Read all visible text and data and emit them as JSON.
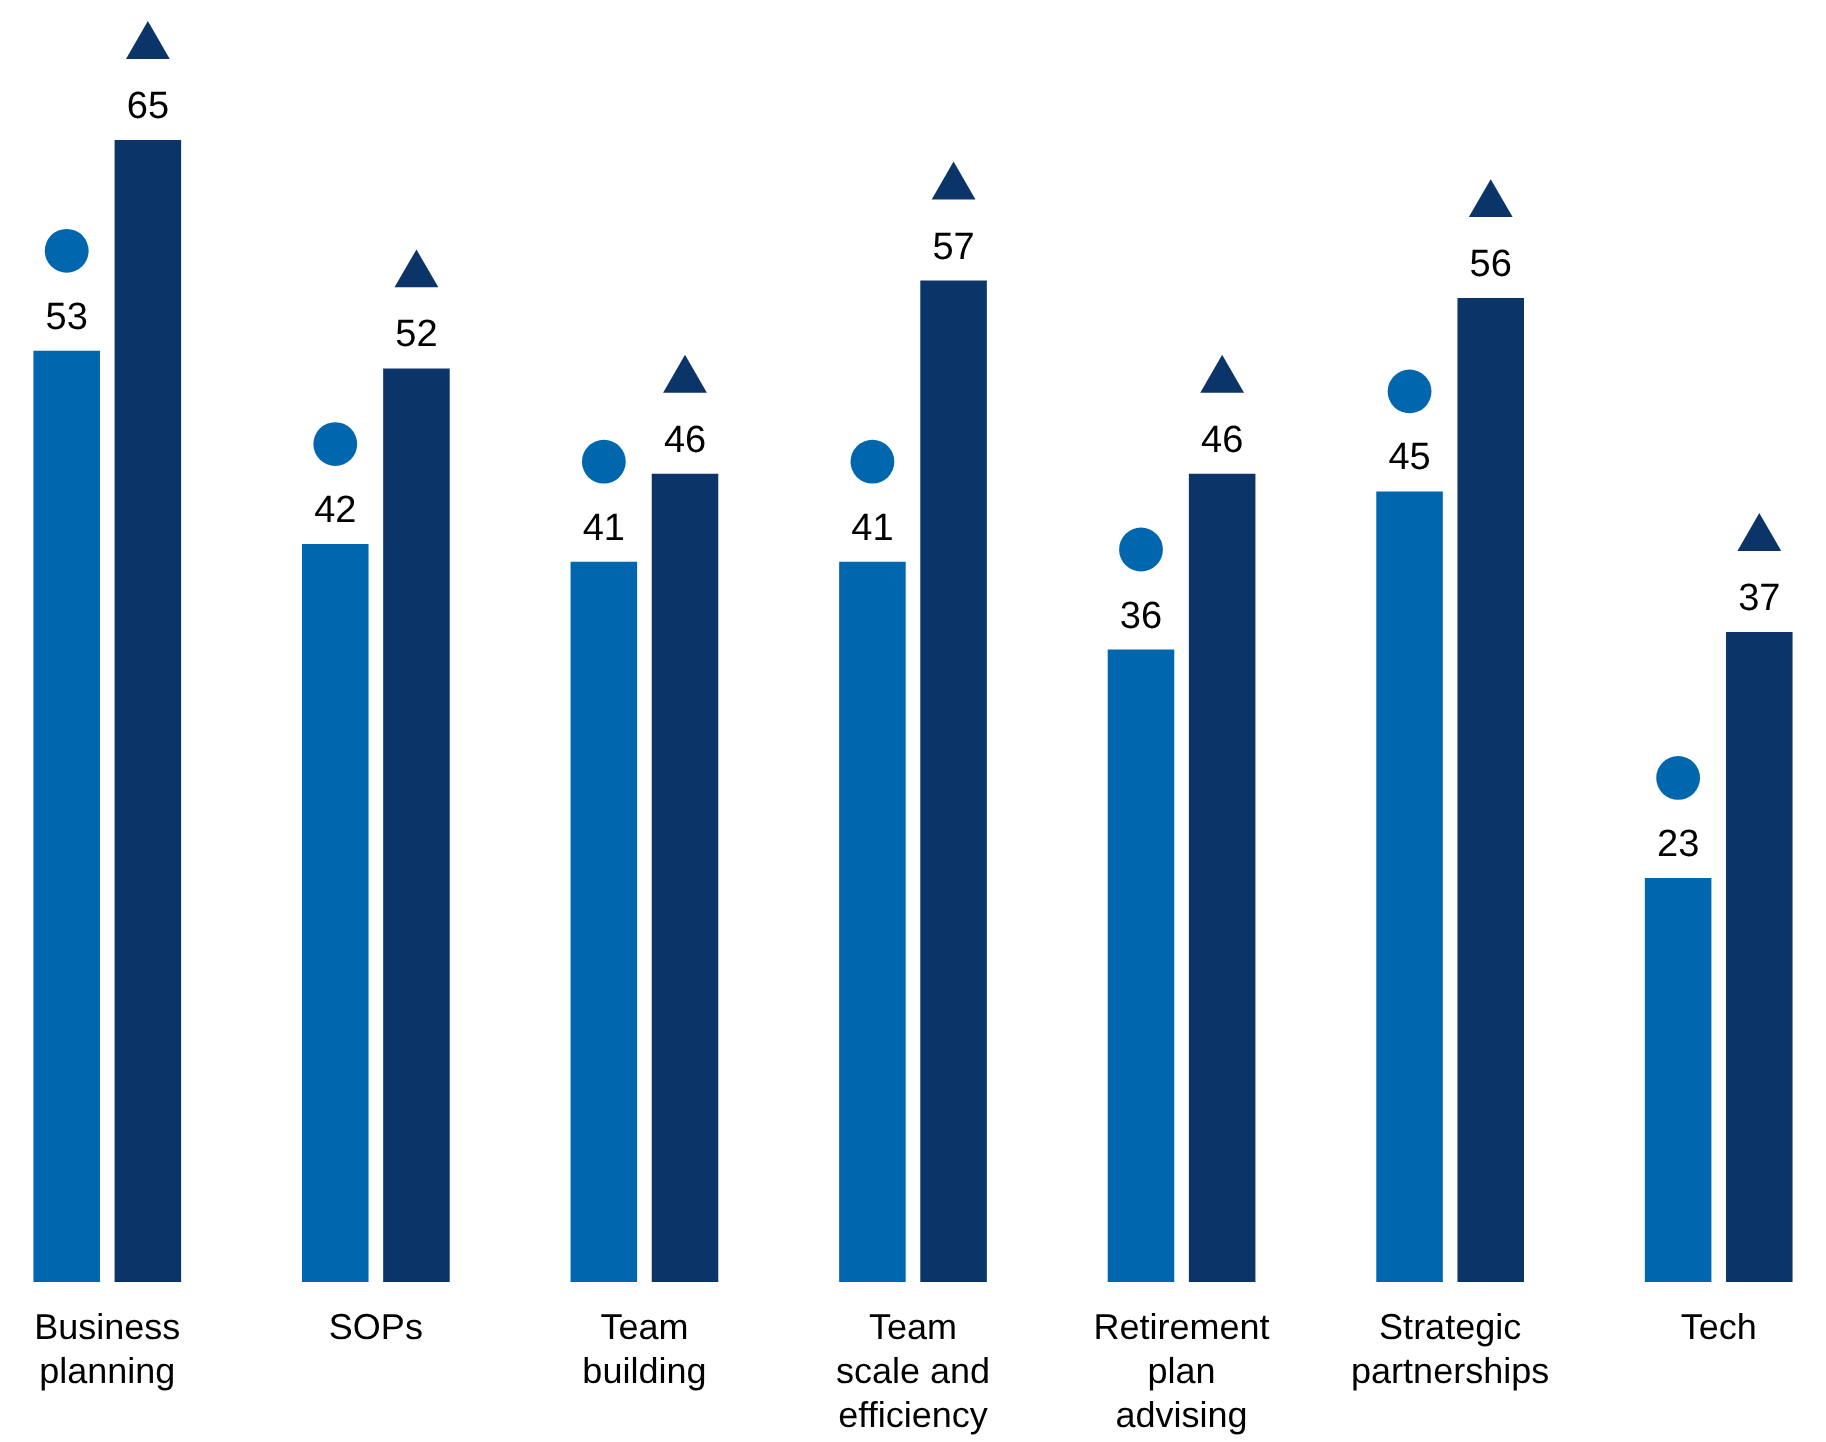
{
  "chart_data": {
    "type": "bar",
    "categories": [
      "Business planning",
      "SOPs",
      "Team building",
      "Team scale and efficiency",
      "Retirement plan advising",
      "Strategic partnerships",
      "Tech"
    ],
    "series": [
      {
        "color": "#0066ad",
        "marker": "circle",
        "values": [
          53,
          42,
          41,
          41,
          36,
          45,
          23
        ]
      },
      {
        "color": "#0b3468",
        "marker": "triangle",
        "values": [
          65,
          52,
          46,
          57,
          46,
          56,
          37
        ]
      }
    ],
    "data_labels": true,
    "grid": false,
    "legend": false
  }
}
